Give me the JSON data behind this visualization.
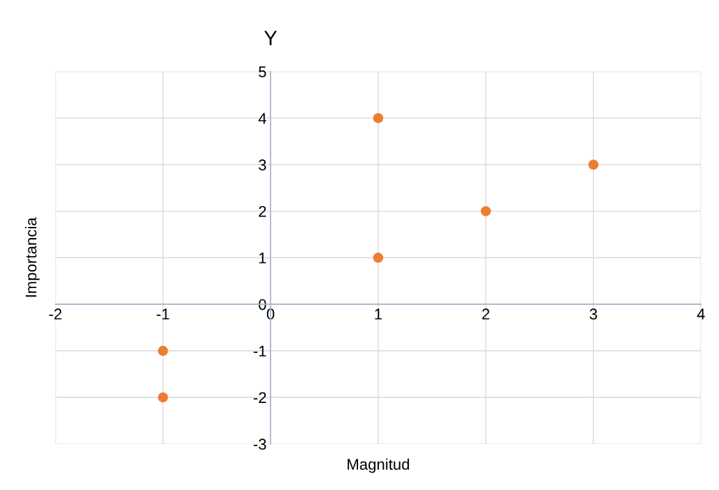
{
  "chart_data": {
    "type": "scatter",
    "title": "Y",
    "xlabel": "Magnitud",
    "ylabel": "Importancia",
    "x": [
      1,
      3,
      2,
      1,
      -1,
      -1
    ],
    "series": [
      {
        "color": "#ed7d31",
        "values": [
          4,
          3,
          2,
          1,
          -1,
          -2
        ]
      }
    ],
    "xlim": [
      -2,
      4
    ],
    "xticks": [
      -2,
      -1,
      0,
      1,
      2,
      3,
      4
    ],
    "ylim": [
      -3,
      5
    ],
    "yticks": [
      -3,
      -2,
      -1,
      0,
      1,
      2,
      3,
      4,
      5
    ],
    "grid": true,
    "marker": "circle"
  }
}
